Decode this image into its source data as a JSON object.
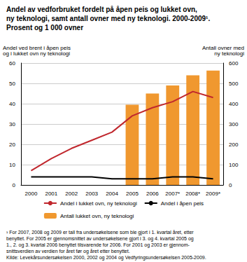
{
  "chart_data": {
    "type": "line",
    "title": "Andel av vedforbruket fordelt på åpen peis og lukket ovn,\nny teknologi, samt antall ovner med ny teknologi. 2000-2009¹.\nProsent og 1 000 ovner",
    "ylabel": "Andel ved brent i åpen peis\nog i lukket ovn ny teknologi",
    "y2label": "Antall ovner med\nny teknologi",
    "notes": [
      "¹ For 2007, 2008 og 2009 er tall fra undersøkelsene som ble gjort i 1. kvartal året, etter",
      "benyttet. For 2005 er gjennomsnittet av undersøkelsene gjort i 3. og 4. kvartal 2005 og",
      "1., 2. og 3. kvartal 2006 benyttet tilsvarende for 2006. For 2001 og 2003 er gjennom-",
      "snittsverdien av verdien for året før og året etter benyttet.",
      "Kilde: Levekårsundersøkelsen 2000, 2002 og 2004 og Vedfyringsundersøkelsen 2005-2009."
    ],
    "categories": [
      "2000",
      "2001",
      "2002",
      "2003",
      "2004",
      "2005",
      "2006",
      "2007*",
      "2008*",
      "2009*"
    ],
    "series": [
      {
        "name": "Andel i lukket ovn, ny teknologi",
        "type": "line",
        "color": "#c0272d",
        "values": [
          7,
          13,
          18,
          22,
          26,
          34,
          38,
          41,
          46,
          43
        ]
      },
      {
        "name": "Andel i åpen peis",
        "type": "line",
        "color": "#000000",
        "values": [
          4,
          4,
          4,
          4,
          3,
          3,
          3,
          4,
          4,
          3
        ]
      },
      {
        "name": "Antall lukket ovn, ny teknologi",
        "type": "bar",
        "axis": "y2",
        "color": "#f0982f",
        "values": [
          null,
          null,
          null,
          null,
          null,
          395,
          450,
          490,
          540,
          563
        ]
      }
    ],
    "ylim": [
      0,
      60
    ],
    "yticks": [
      0,
      10,
      20,
      30,
      40,
      50,
      60
    ],
    "y2lim": [
      0,
      600
    ],
    "y2ticks": [
      0,
      100,
      200,
      300,
      400,
      500,
      600
    ],
    "grid": true,
    "legend": "bottom"
  }
}
